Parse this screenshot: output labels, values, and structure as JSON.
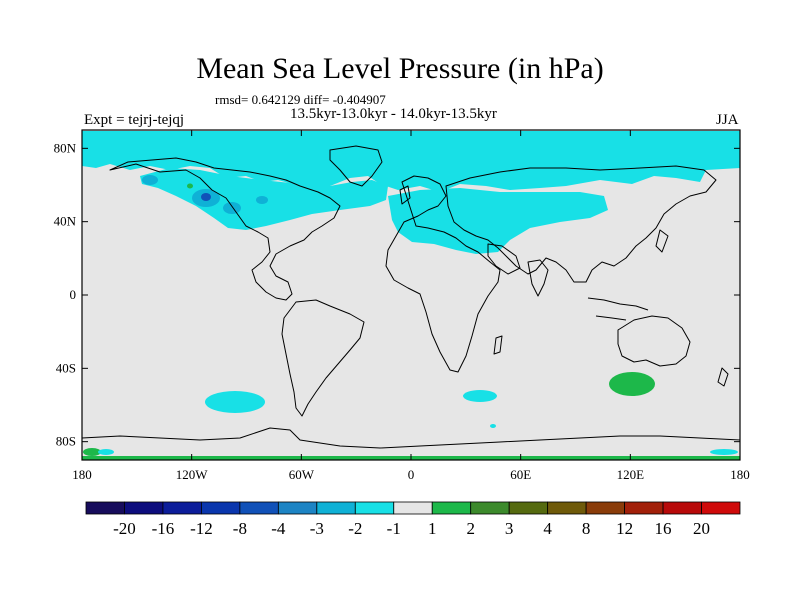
{
  "title": "Mean Sea Level Pressure (in hPa)",
  "stats_line": "rmsd= 0.642129 diff= -0.404907",
  "periods_line": "13.5kyr-13.0kyr - 14.0kyr-13.5kyr",
  "experiment": "Expt = tejrj-tejqj",
  "season": "JJA",
  "axes": {
    "lat_labels": [
      "80N",
      "40N",
      "0",
      "40S",
      "80S"
    ],
    "lat_values": [
      80,
      40,
      0,
      -40,
      -80
    ],
    "lon_labels": [
      "180",
      "120W",
      "60W",
      "0",
      "60E",
      "120E",
      "180"
    ],
    "lon_values": [
      -180,
      -120,
      -60,
      0,
      60,
      120,
      180
    ]
  },
  "colorbar": {
    "labels": [
      "-20",
      "-16",
      "-12",
      "-8",
      "-4",
      "-3",
      "-2",
      "-1",
      "1",
      "2",
      "3",
      "4",
      "8",
      "12",
      "16",
      "20"
    ],
    "colors": [
      "#170c5c",
      "#0d0d7d",
      "#0c1d9a",
      "#0a36ad",
      "#1151b8",
      "#1d84c4",
      "#0fb1d6",
      "#18e0e6",
      "#e6e6e6",
      "#1db84a",
      "#3c8a2c",
      "#556a10",
      "#6f5a0a",
      "#8a3c0a",
      "#a2200a",
      "#b80a0a",
      "#cf0a0a"
    ]
  },
  "colors": {
    "background_neutral": "#e6e6e6",
    "anomaly_minus_1_to_2": "#18e0e6",
    "anomaly_minus_2_to_3": "#0fb1d6",
    "anomaly_plus_1_to_2": "#1db84a"
  }
}
